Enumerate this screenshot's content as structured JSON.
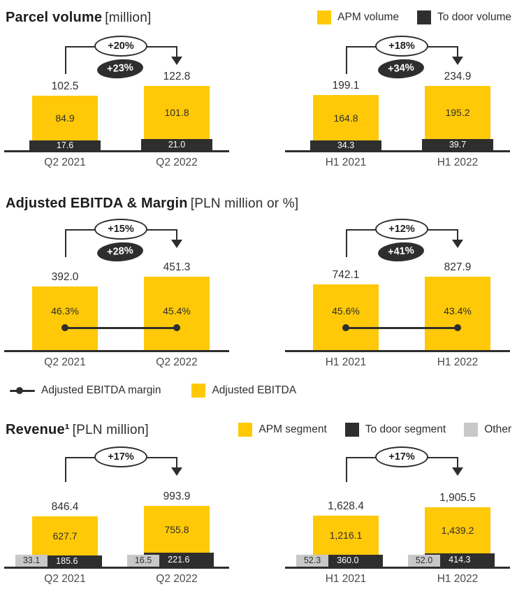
{
  "accent_colors": {
    "yellow": "#FFC907",
    "dark": "#2E2E2E",
    "gray": "#C8C8C8"
  },
  "chart_data": [
    {
      "type": "bar",
      "stacked": true,
      "title": "Parcel volume",
      "unit": "[million]",
      "legend_position": "top-right",
      "legend": [
        {
          "label": "APM volume",
          "color": "#FFC907"
        },
        {
          "label": "To door volume",
          "color": "#2E2E2E"
        }
      ],
      "panels": [
        {
          "categories": [
            "Q2 2021",
            "Q2 2022"
          ],
          "totals": [
            102.5,
            122.8
          ],
          "total_labels": [
            "102.5",
            "122.8"
          ],
          "growth": [
            "+20%",
            "+23%"
          ],
          "series": [
            {
              "name": "APM volume",
              "values": [
                84.9,
                101.8
              ],
              "labels": [
                "84.9",
                "101.8"
              ]
            },
            {
              "name": "To door volume",
              "values": [
                17.6,
                21.0
              ],
              "labels": [
                "17.6",
                "21.0"
              ]
            }
          ]
        },
        {
          "categories": [
            "H1 2021",
            "H1 2022"
          ],
          "totals": [
            199.1,
            234.9
          ],
          "total_labels": [
            "199.1",
            "234.9"
          ],
          "growth": [
            "+18%",
            "+34%"
          ],
          "series": [
            {
              "name": "APM volume",
              "values": [
                164.8,
                195.2
              ],
              "labels": [
                "164.8",
                "195.2"
              ]
            },
            {
              "name": "To door volume",
              "values": [
                34.3,
                39.7
              ],
              "labels": [
                "34.3",
                "39.7"
              ]
            }
          ]
        }
      ]
    },
    {
      "type": "bar+line",
      "title": "Adjusted EBITDA & Margin",
      "unit": "[PLN million or %]",
      "legend_position": "below",
      "legend": [
        {
          "label": "Adjusted EBITDA margin",
          "color": "#2E2E2E",
          "style": "line-dot"
        },
        {
          "label": "Adjusted EBITDA",
          "color": "#FFC907",
          "style": "square"
        }
      ],
      "panels": [
        {
          "categories": [
            "Q2 2021",
            "Q2 2022"
          ],
          "totals": [
            392.0,
            451.3
          ],
          "total_labels": [
            "392.0",
            "451.3"
          ],
          "growth": [
            "+15%",
            "+28%"
          ],
          "margins": [
            "46.3%",
            "45.4%"
          ]
        },
        {
          "categories": [
            "H1 2021",
            "H1 2022"
          ],
          "totals": [
            742.1,
            827.9
          ],
          "total_labels": [
            "742.1",
            "827.9"
          ],
          "growth": [
            "+12%",
            "+41%"
          ],
          "margins": [
            "45.6%",
            "43.4%"
          ]
        }
      ]
    },
    {
      "type": "bar",
      "stacked": true,
      "title": "Revenue¹",
      "unit": "[PLN million]",
      "legend_position": "top-right",
      "legend": [
        {
          "label": "APM segment",
          "color": "#FFC907"
        },
        {
          "label": "To door segment",
          "color": "#2E2E2E"
        },
        {
          "label": "Other",
          "color": "#C8C8C8"
        }
      ],
      "panels": [
        {
          "categories": [
            "Q2 2021",
            "Q2 2022"
          ],
          "totals": [
            846.4,
            993.9
          ],
          "total_labels": [
            "846.4",
            "993.9"
          ],
          "growth": [
            "+17%"
          ],
          "series": [
            {
              "name": "APM segment",
              "values": [
                627.7,
                755.8
              ],
              "labels": [
                "627.7",
                "755.8"
              ]
            },
            {
              "name": "To door segment",
              "values": [
                185.6,
                221.6
              ],
              "labels": [
                "185.6",
                "221.6"
              ]
            },
            {
              "name": "Other",
              "values": [
                33.1,
                16.5
              ],
              "labels": [
                "33.1",
                "16.5"
              ]
            }
          ]
        },
        {
          "categories": [
            "H1 2021",
            "H1 2022"
          ],
          "totals": [
            1628.4,
            1905.5
          ],
          "total_labels": [
            "1,628.4",
            "1,905.5"
          ],
          "growth": [
            "+17%"
          ],
          "series": [
            {
              "name": "APM segment",
              "values": [
                1216.1,
                1439.2
              ],
              "labels": [
                "1,216.1",
                "1,439.2"
              ]
            },
            {
              "name": "To door segment",
              "values": [
                360.0,
                414.3
              ],
              "labels": [
                "360.0",
                "414.3"
              ]
            },
            {
              "name": "Other",
              "values": [
                52.3,
                52.0
              ],
              "labels": [
                "52.3",
                "52.0"
              ]
            }
          ]
        }
      ]
    }
  ]
}
